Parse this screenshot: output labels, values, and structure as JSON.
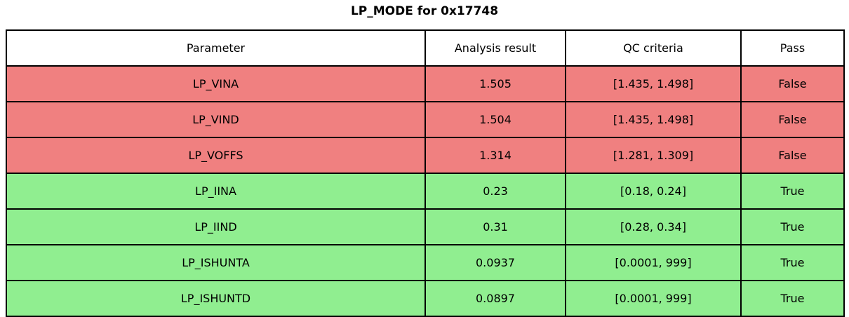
{
  "title": "LP_MODE for 0x17748",
  "chart_data": {
    "type": "table",
    "title": "LP_MODE for 0x17748",
    "columns": [
      "Parameter",
      "Analysis result",
      "QC criteria",
      "Pass"
    ],
    "rows": [
      [
        "LP_VINA",
        "1.505",
        "[1.435, 1.498]",
        "False"
      ],
      [
        "LP_VIND",
        "1.504",
        "[1.435, 1.498]",
        "False"
      ],
      [
        "LP_VOFFS",
        "1.314",
        "[1.281, 1.309]",
        "False"
      ],
      [
        "LP_IINA",
        "0.23",
        "[0.18, 0.24]",
        "True"
      ],
      [
        "LP_IIND",
        "0.31",
        "[0.28, 0.34]",
        "True"
      ],
      [
        "LP_ISHUNTA",
        "0.0937",
        "[0.0001, 999]",
        "True"
      ],
      [
        "LP_ISHUNTD",
        "0.0897",
        "[0.0001, 999]",
        "True"
      ]
    ]
  },
  "colors": {
    "fail_row": "#f08080",
    "pass_row": "#90ee90",
    "header_bg": "#ffffff",
    "border": "#000000",
    "text": "#000000"
  }
}
